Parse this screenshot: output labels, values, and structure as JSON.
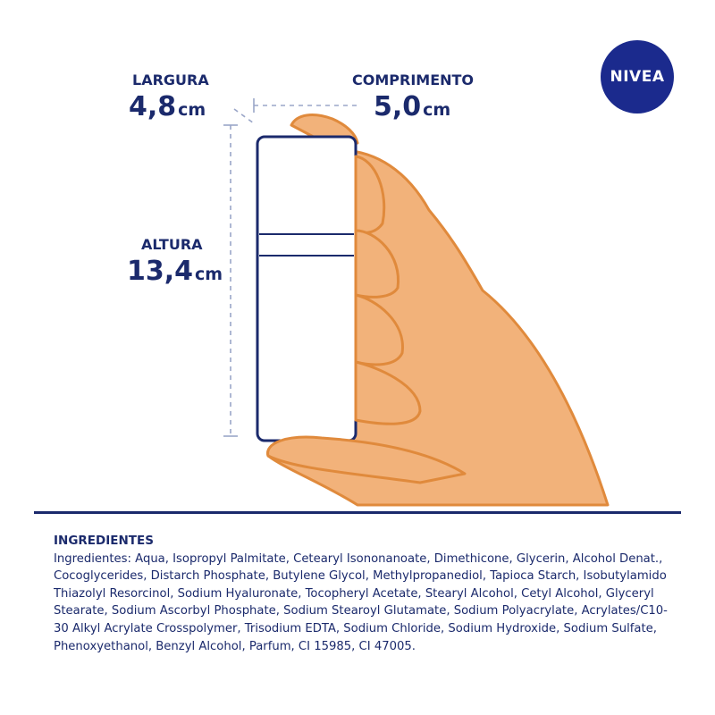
{
  "brand": {
    "logo_text": "NIVEA",
    "color": "#1b2a8d"
  },
  "dimensions": {
    "width": {
      "label": "LARGURA",
      "value": "4,8",
      "unit": "cm"
    },
    "length": {
      "label": "COMPRIMENTO",
      "value": "5,0",
      "unit": "cm"
    },
    "height": {
      "label": "ALTURA",
      "value": "13,4",
      "unit": "cm"
    }
  },
  "ingredients": {
    "title": "INGREDIENTES",
    "text": "Ingredientes: Aqua, Isopropyl Palmitate, Cetearyl Isononanoate, Dimethicone, Glycerin, Alcohol Denat., Cocoglycerides, Distarch Phosphate, Butylene Glycol, Methylpropanediol, Tapioca Starch, Isobutylamido Thiazolyl Resorcinol, Sodium Hyaluronate, Tocopheryl Acetate, Stearyl Alcohol, Cetyl Alcohol, Glyceryl Stearate, Sodium Ascorbyl Phosphate, Sodium Stearoyl Glutamate, Sodium Polyacrylate, Acrylates/C10-30 Alkyl Acrylate Crosspolymer, Trisodium EDTA, Sodium Chloride, Sodium Hydroxide, Sodium Sulfate, Phenoxyethanol, Benzyl Alcohol, Parfum, CI 15985, CI 47005."
  },
  "colors": {
    "navy": "#1b2a6c",
    "skin": "#f2b27a",
    "skin_shadow": "#e08a3c",
    "dash": "#9aa6c8"
  }
}
